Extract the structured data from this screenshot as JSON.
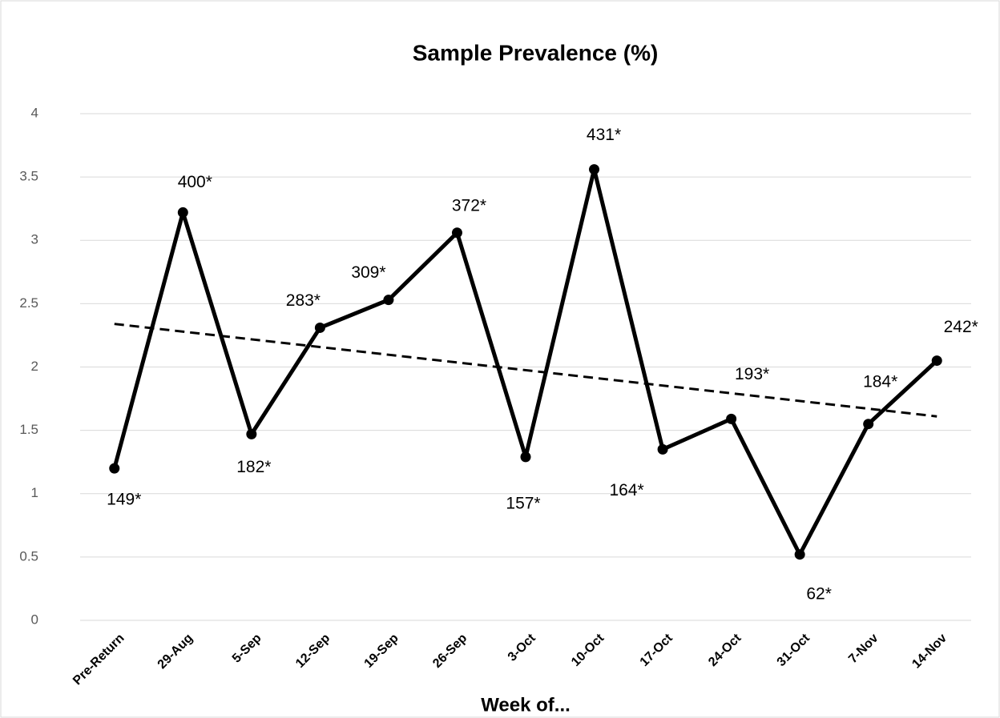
{
  "chart_data": {
    "type": "line",
    "title": "Sample Prevalence (%)",
    "x_label": "Week of...",
    "categories": [
      "Pre-Return",
      "29-Aug",
      "5-Sep",
      "12-Sep",
      "19-Sep",
      "26-Sep",
      "3-Oct",
      "10-Oct",
      "17-Oct",
      "24-Oct",
      "31-Oct",
      "7-Nov",
      "14-Nov"
    ],
    "values": [
      1.2,
      3.22,
      1.47,
      2.31,
      2.53,
      3.06,
      1.29,
      3.56,
      1.35,
      1.59,
      0.52,
      1.55,
      2.05
    ],
    "point_labels": [
      "149*",
      "400*",
      "182*",
      "283*",
      "309*",
      "372*",
      "157*",
      "431*",
      "164*",
      "193*",
      "62*",
      "184*",
      "242*"
    ],
    "color": "#000000",
    "trendline": {
      "start": 2.34,
      "end": 1.61
    },
    "ylim": [
      0,
      4
    ],
    "yticks": [
      0,
      0.5,
      1,
      1.5,
      2,
      2.5,
      3,
      3.5,
      4
    ],
    "grid": true
  }
}
